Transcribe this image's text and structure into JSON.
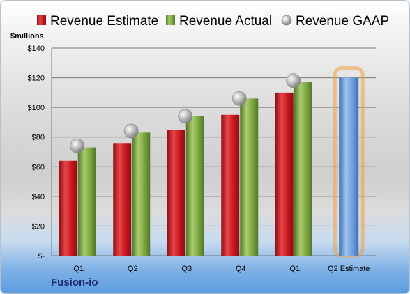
{
  "chart_data": {
    "type": "bar",
    "ylabel": "$millions",
    "ylim": [
      0,
      140
    ],
    "yticks": [
      0,
      20,
      40,
      60,
      80,
      100,
      120,
      140
    ],
    "ytick_labels": [
      "$-",
      "$20",
      "$40",
      "$60",
      "$80",
      "$100",
      "$120",
      "$140"
    ],
    "categories": [
      "Q1",
      "Q2",
      "Q3",
      "Q4",
      "Q1",
      "Q2 Estimate"
    ],
    "series": [
      {
        "name": "Revenue Estimate",
        "color": "#c0181e",
        "values": [
          64,
          76,
          85,
          95,
          110,
          null
        ]
      },
      {
        "name": "Revenue Actual",
        "color": "#76a03a",
        "values": [
          73,
          83,
          94,
          106,
          117,
          null
        ]
      },
      {
        "name": "Revenue GAAP",
        "color": "#9a9a9a",
        "marker": "circle",
        "values": [
          74,
          84,
          94,
          106,
          118,
          null
        ]
      }
    ],
    "highlight": {
      "category": "Q2 Estimate",
      "value": 120,
      "color": "#5b8fd0",
      "glow": "#f2a040"
    },
    "legend_position": "top",
    "grid": true
  },
  "footer": {
    "company": "Fusion-io"
  }
}
